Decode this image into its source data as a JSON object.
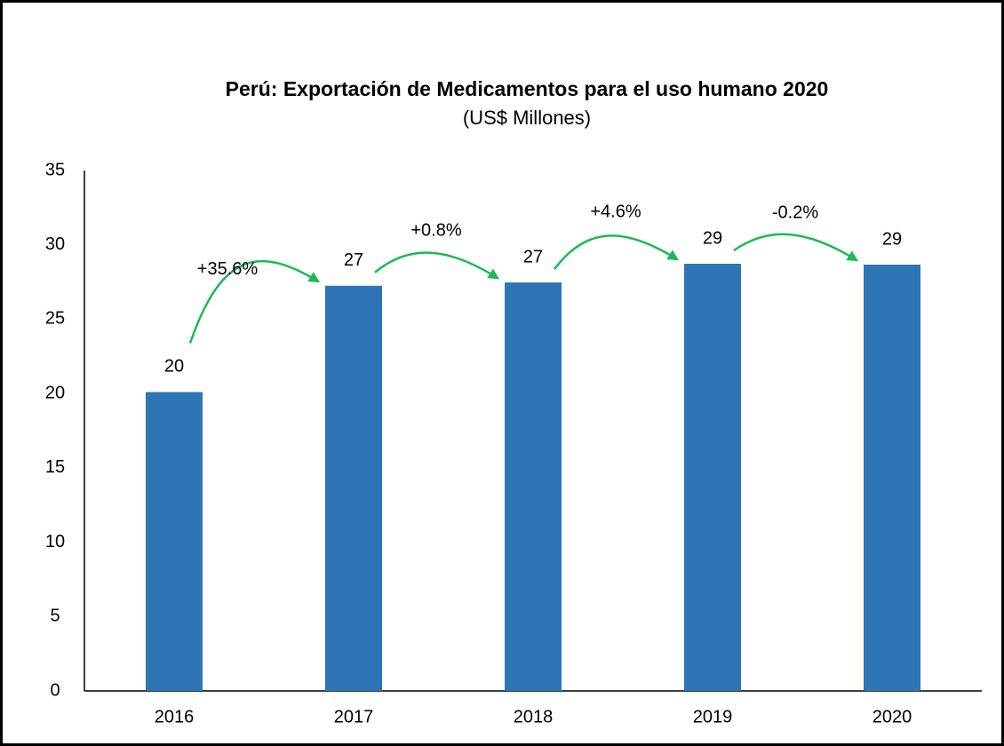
{
  "chart_data": {
    "type": "bar",
    "title": "Perú: Exportación de Medicamentos para el uso humano 2020",
    "subtitle": "(US$ Millones)",
    "categories": [
      "2016",
      "2017",
      "2018",
      "2019",
      "2020"
    ],
    "values": [
      20.1,
      27.25,
      27.47,
      28.73,
      28.67
    ],
    "value_labels": [
      "20",
      "27",
      "27",
      "29",
      "29"
    ],
    "color": "#2e75b6",
    "annotations": [
      {
        "text": "+35.6%",
        "from": "2016",
        "to": "2017"
      },
      {
        "text": "+0.8%",
        "from": "2017",
        "to": "2018"
      },
      {
        "text": "+4.6%",
        "from": "2018",
        "to": "2019"
      },
      {
        "text": "-0.2%",
        "from": "2019",
        "to": "2020"
      }
    ],
    "annotation_color": "#1db954",
    "ylim": [
      0,
      35
    ],
    "yticks": [
      0,
      5,
      10,
      15,
      20,
      25,
      30,
      35
    ],
    "grid": false
  }
}
